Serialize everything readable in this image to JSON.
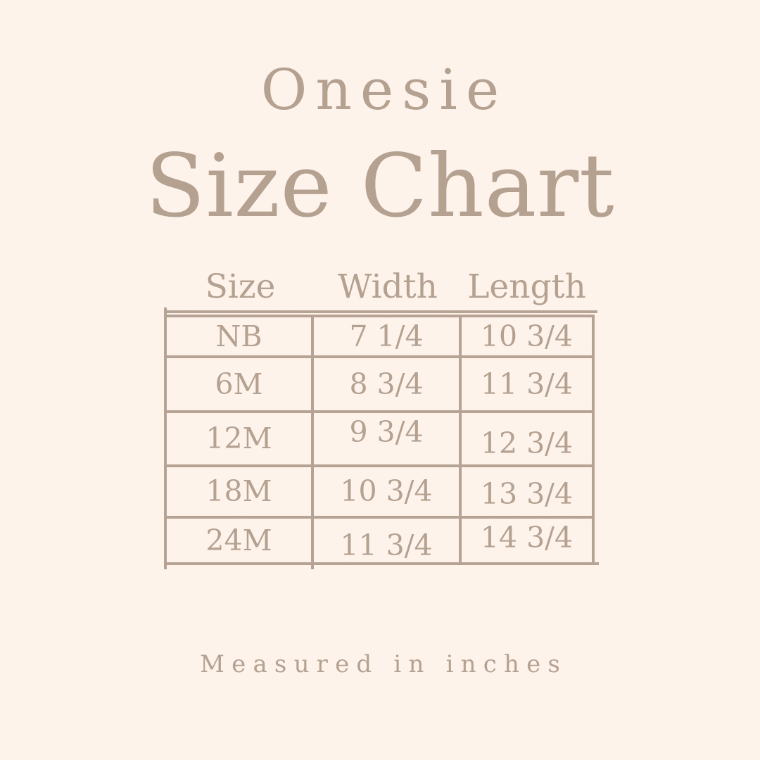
{
  "page": {
    "product": "Onesie",
    "heading": "Size Chart",
    "footer": "Measured in inches"
  },
  "colors": {
    "background": "#fdf3ea",
    "text": "#b4a190",
    "line": "#b7a393"
  },
  "chart_data": {
    "type": "table",
    "title": "Onesie Size Chart",
    "unit": "inches",
    "columns": [
      "Size",
      "Width",
      "Length"
    ],
    "rows": [
      {
        "size": "NB",
        "width": "7 1/4",
        "length": "10 3/4"
      },
      {
        "size": "6M",
        "width": "8 3/4",
        "length": "11 3/4"
      },
      {
        "size": "12M",
        "width": "9 3/4",
        "length": "12 3/4"
      },
      {
        "size": "18M",
        "width": "10 3/4",
        "length": "13 3/4"
      },
      {
        "size": "24M",
        "width": "11 3/4",
        "length": "14 3/4"
      }
    ]
  }
}
